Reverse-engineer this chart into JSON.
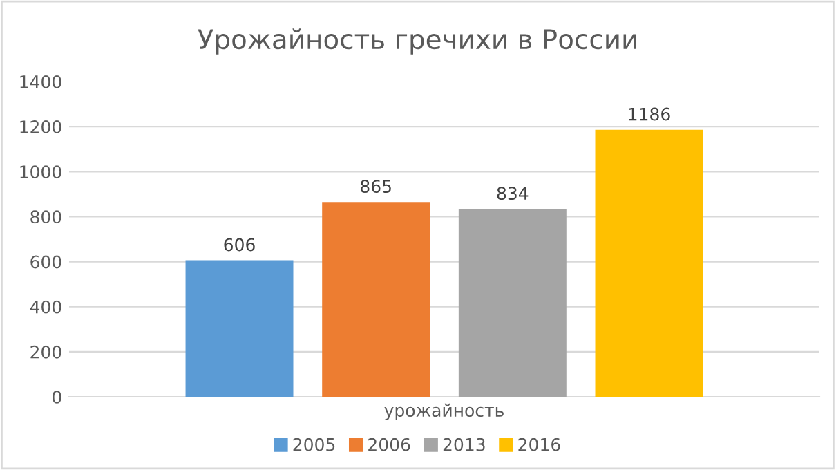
{
  "chart_data": {
    "type": "bar",
    "title": "Урожайность гречихи в России",
    "categories": [
      "урожайность"
    ],
    "series": [
      {
        "name": "2005",
        "color": "#5b9bd5",
        "values": [
          606
        ]
      },
      {
        "name": "2006",
        "color": "#ed7d31",
        "values": [
          865
        ]
      },
      {
        "name": "2013",
        "color": "#a5a5a5",
        "values": [
          834
        ]
      },
      {
        "name": "2016",
        "color": "#ffc000",
        "values": [
          1186
        ]
      }
    ],
    "ylim": [
      0,
      1400
    ],
    "yticks": [
      0,
      200,
      400,
      600,
      800,
      1000,
      1200,
      1400
    ],
    "grid": "y",
    "legend": "bottom",
    "data_labels": true
  }
}
